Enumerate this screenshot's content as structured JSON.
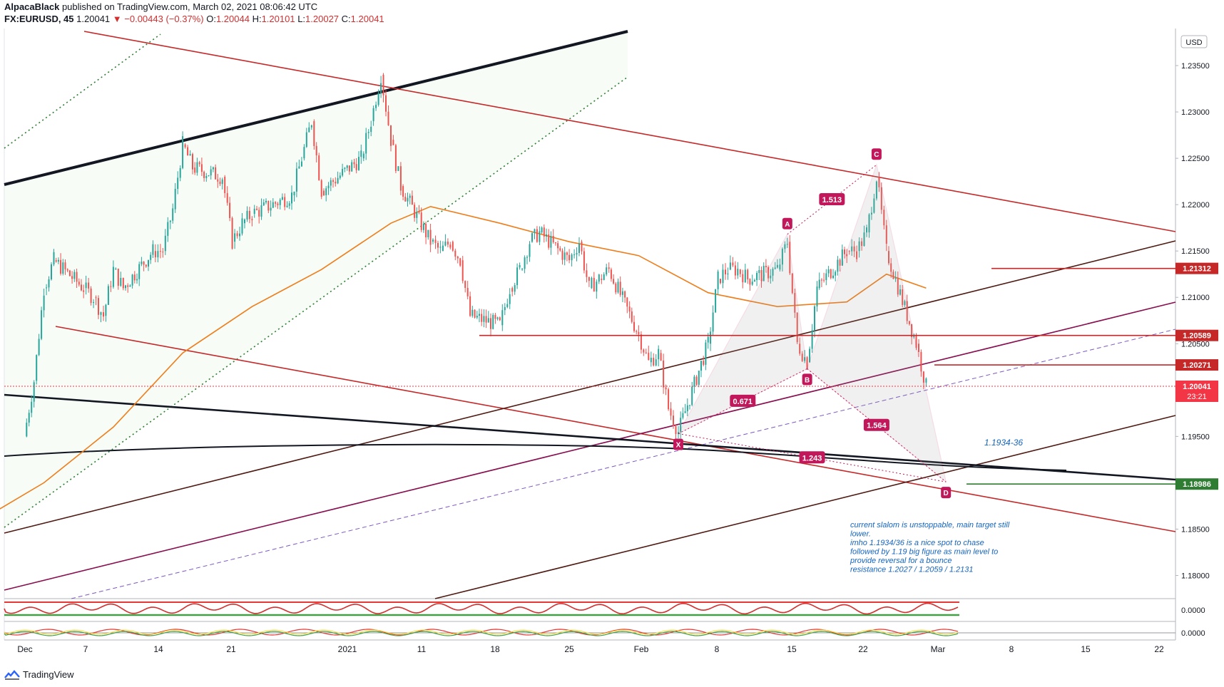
{
  "header": {
    "author": "AlpacaBlack",
    "published_text": "published on TradingView.com, March 02, 2021 08:06:42 UTC",
    "symbol": "FX:EURUSD, 45",
    "last": "1.20041",
    "change": "▼ −0.00443 (−0.37%)",
    "o_label": "O:",
    "o": "1.20044",
    "h_label": "H:",
    "h": "1.20101",
    "l_label": "L:",
    "l": "1.20027",
    "c_label": "C:",
    "c": "1.20041"
  },
  "footer": {
    "brand": "TradingView",
    "logo_icon": "tradingview-logo-icon"
  },
  "chart_data": {
    "type": "line",
    "symbol": "FX:EURUSD",
    "interval": "45",
    "currency_label": "USD",
    "y_ticks": [
      "1.23500",
      "1.23000",
      "1.22500",
      "1.22000",
      "1.21500",
      "1.21000",
      "1.20500",
      "1.19500",
      "1.18500",
      "1.18000"
    ],
    "ylim": [
      1.1775,
      1.239
    ],
    "x_ticks": [
      "Dec",
      "7",
      "14",
      "21",
      "2021",
      "11",
      "18",
      "25",
      "Feb",
      "8",
      "15",
      "22",
      "Mar",
      "8",
      "15",
      "22"
    ],
    "price_series_note": "45-minute candles",
    "price_series": [
      [
        "2020-12-01",
        1.195
      ],
      [
        "2020-12-02",
        1.201
      ],
      [
        "2020-12-03",
        1.211
      ],
      [
        "2020-12-04",
        1.214
      ],
      [
        "2020-12-07",
        1.211
      ],
      [
        "2020-12-08",
        1.21
      ],
      [
        "2020-12-09",
        1.208
      ],
      [
        "2020-12-10",
        1.213
      ],
      [
        "2020-12-11",
        1.211
      ],
      [
        "2020-12-14",
        1.215
      ],
      [
        "2020-12-15",
        1.215
      ],
      [
        "2020-12-16",
        1.2195
      ],
      [
        "2020-12-17",
        1.2265
      ],
      [
        "2020-12-18",
        1.224
      ],
      [
        "2020-12-21",
        1.223
      ],
      [
        "2020-12-22",
        1.216
      ],
      [
        "2020-12-23",
        1.218
      ],
      [
        "2020-12-24",
        1.219
      ],
      [
        "2020-12-28",
        1.221
      ],
      [
        "2020-12-29",
        1.225
      ],
      [
        "2020-12-30",
        1.229
      ],
      [
        "2020-12-31",
        1.2215
      ],
      [
        "2021-01-04",
        1.225
      ],
      [
        "2021-01-05",
        1.229
      ],
      [
        "2021-01-06",
        1.234
      ],
      [
        "2021-01-07",
        1.227
      ],
      [
        "2021-01-08",
        1.222
      ],
      [
        "2021-01-11",
        1.216
      ],
      [
        "2021-01-12",
        1.215
      ],
      [
        "2021-01-13",
        1.216
      ],
      [
        "2021-01-14",
        1.214
      ],
      [
        "2021-01-15",
        1.208
      ],
      [
        "2021-01-18",
        1.207
      ],
      [
        "2021-01-19",
        1.211
      ],
      [
        "2021-01-20",
        1.213
      ],
      [
        "2021-01-21",
        1.216
      ],
      [
        "2021-01-22",
        1.217
      ],
      [
        "2021-01-25",
        1.214
      ],
      [
        "2021-01-26",
        1.216
      ],
      [
        "2021-01-27",
        1.211
      ],
      [
        "2021-01-28",
        1.212
      ],
      [
        "2021-01-29",
        1.213
      ],
      [
        "2021-02-01",
        1.206
      ],
      [
        "2021-02-02",
        1.203
      ],
      [
        "2021-02-03",
        1.204
      ],
      [
        "2021-02-04",
        1.198
      ],
      [
        "2021-02-05",
        1.1955
      ],
      [
        "2021-02-08",
        1.205
      ],
      [
        "2021-02-09",
        1.212
      ],
      [
        "2021-02-10",
        1.213
      ],
      [
        "2021-02-11",
        1.213
      ],
      [
        "2021-02-12",
        1.212
      ],
      [
        "2021-02-15",
        1.213
      ],
      [
        "2021-02-16",
        1.216
      ],
      [
        "2021-02-17",
        1.205
      ],
      [
        "2021-02-18",
        1.203
      ],
      [
        "2021-02-19",
        1.211
      ],
      [
        "2021-02-22",
        1.215
      ],
      [
        "2021-02-23",
        1.215
      ],
      [
        "2021-02-24",
        1.217
      ],
      [
        "2021-02-25",
        1.223
      ],
      [
        "2021-02-26",
        1.215
      ],
      [
        "2021-03-01",
        1.205
      ],
      [
        "2021-03-02",
        1.2004
      ]
    ],
    "ma_line": {
      "color": "#ef7d1a",
      "points": [
        [
          "2020-11-27",
          1.1862
        ],
        [
          "2020-12-03",
          1.19
        ],
        [
          "2020-12-10",
          1.196
        ],
        [
          "2020-12-17",
          1.204
        ],
        [
          "2020-12-24",
          1.209
        ],
        [
          "2020-12-31",
          1.213
        ],
        [
          "2021-01-07",
          1.218
        ],
        [
          "2021-01-11",
          1.2198
        ],
        [
          "2021-01-18",
          1.218
        ],
        [
          "2021-01-25",
          1.216
        ],
        [
          "2021-02-01",
          1.2145
        ],
        [
          "2021-02-08",
          1.2105
        ],
        [
          "2021-02-15",
          1.209
        ],
        [
          "2021-02-22",
          1.2095
        ],
        [
          "2021-02-26",
          1.2125
        ],
        [
          "2021-03-02",
          1.211
        ]
      ]
    },
    "price_labels": [
      {
        "text": "1.21312",
        "value": 1.21312,
        "color": "#c62828",
        "type": "resistance"
      },
      {
        "text": "1.20589",
        "value": 1.20589,
        "color": "#c62828",
        "type": "resistance"
      },
      {
        "text": "1.20271",
        "value": 1.20271,
        "color": "#c62828",
        "type": "resistance"
      },
      {
        "text": "1.20041",
        "value": 1.20041,
        "color": "#f23645",
        "type": "last",
        "countdown": "23:21"
      },
      {
        "text": "1.18986",
        "value": 1.18986,
        "color": "#2e7d32",
        "type": "target"
      }
    ],
    "harmonic_pattern": {
      "points": [
        {
          "name": "X",
          "date": "2021-02-05",
          "price": 1.1953
        },
        {
          "name": "A",
          "date": "2021-02-16",
          "price": 1.2168
        },
        {
          "name": "B",
          "date": "2021-02-18",
          "price": 1.2023
        },
        {
          "name": "C",
          "date": "2021-02-25",
          "price": 1.2243
        },
        {
          "name": "D",
          "date": "2021-03-04",
          "price": 1.1901
        }
      ],
      "ratios": [
        {
          "text": "0.671",
          "between": "XB"
        },
        {
          "text": "1.513",
          "between": "AC"
        },
        {
          "text": "1.564",
          "between": "BD"
        },
        {
          "text": "1.243",
          "between": "XD"
        }
      ],
      "color": "#c2185b"
    },
    "target_annotation": "1.1934-36",
    "note": [
      "current slalom is unstoppable, main target still",
      "lower.",
      "imho 1.1934/36 is a nice spot to chase",
      "followed by 1.19 big figure as main level to",
      "provide reversal for a bounce",
      "resistance 1.2027 / 1.2059 / 1.2131"
    ],
    "indicator_panes": [
      {
        "tick": "0.0000",
        "color": "#d32f2f",
        "upper_line_color": "#e53935",
        "lower_line_color": "#43a047"
      },
      {
        "tick": "0.0000",
        "colors": [
          "#e53935",
          "#43a047",
          "#fdd835"
        ]
      }
    ],
    "grid": false,
    "legend": "none"
  }
}
